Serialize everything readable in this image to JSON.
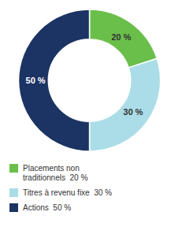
{
  "chart_data": {
    "type": "pie",
    "categories": [
      "Placements non\ntraditionnels  20 %",
      "Titres à revenu fixe  30 %",
      "Actions  50 %"
    ],
    "values": [
      20,
      30,
      50
    ],
    "value_labels": [
      "20 %",
      "30 %",
      "50 %"
    ],
    "colors": [
      "#6abf4b",
      "#aadde8",
      "#1c3464"
    ],
    "data_labels": true,
    "legend": "bottom"
  }
}
